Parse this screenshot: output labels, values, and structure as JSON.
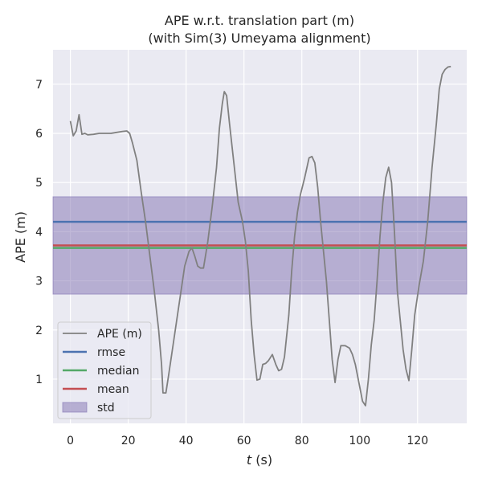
{
  "chart_data": {
    "type": "line",
    "title_line1": "APE w.r.t. translation part (m)",
    "title_line2": "(with Sim(3) Umeyama alignment)",
    "xlabel_var": "t",
    "xlabel_unit": "(s)",
    "ylabel": "APE (m)",
    "xlim": [
      -6,
      137
    ],
    "ylim": [
      0.1,
      7.7
    ],
    "xticks": [
      0,
      20,
      40,
      60,
      80,
      100,
      120
    ],
    "yticks": [
      1,
      2,
      3,
      4,
      5,
      6,
      7
    ],
    "grid": true,
    "legend_position": "lower-left",
    "colors": {
      "background": "#eaeaf2",
      "grid": "#ffffff",
      "ape": "#808080",
      "rmse": "#4c72b0",
      "median": "#55a868",
      "mean": "#c44e52",
      "std": "#8172b2"
    },
    "stats": {
      "rmse": 4.2,
      "median": 3.67,
      "mean": 3.72,
      "std_band": [
        2.73,
        4.71
      ]
    },
    "legend": [
      {
        "key": "ape",
        "label": "APE (m)",
        "kind": "line"
      },
      {
        "key": "rmse",
        "label": "rmse",
        "kind": "line"
      },
      {
        "key": "median",
        "label": "median",
        "kind": "line"
      },
      {
        "key": "mean",
        "label": "mean",
        "kind": "line"
      },
      {
        "key": "std",
        "label": "std",
        "kind": "patch"
      }
    ],
    "series": [
      {
        "name": "APE (m)",
        "points": [
          [
            0,
            6.25
          ],
          [
            1,
            5.95
          ],
          [
            2,
            6.05
          ],
          [
            3,
            6.38
          ],
          [
            4,
            5.98
          ],
          [
            5,
            6.0
          ],
          [
            6,
            5.97
          ],
          [
            8,
            5.98
          ],
          [
            10,
            6.0
          ],
          [
            12,
            6.0
          ],
          [
            14,
            6.0
          ],
          [
            16,
            6.02
          ],
          [
            18,
            6.04
          ],
          [
            19.5,
            6.05
          ],
          [
            20.5,
            6.0
          ],
          [
            21.5,
            5.8
          ],
          [
            23,
            5.45
          ],
          [
            24.5,
            4.8
          ],
          [
            26,
            4.2
          ],
          [
            27.5,
            3.5
          ],
          [
            29,
            2.8
          ],
          [
            30.5,
            2.0
          ],
          [
            31.5,
            1.3
          ],
          [
            32,
            0.72
          ],
          [
            33,
            0.72
          ],
          [
            34,
            1.1
          ],
          [
            35.5,
            1.7
          ],
          [
            37,
            2.3
          ],
          [
            38.5,
            2.9
          ],
          [
            39.5,
            3.3
          ],
          [
            41,
            3.6
          ],
          [
            42,
            3.67
          ],
          [
            43,
            3.5
          ],
          [
            44,
            3.3
          ],
          [
            45,
            3.26
          ],
          [
            46,
            3.26
          ],
          [
            47.5,
            3.8
          ],
          [
            49,
            4.5
          ],
          [
            50.5,
            5.3
          ],
          [
            51.5,
            6.1
          ],
          [
            52.5,
            6.6
          ],
          [
            53.2,
            6.85
          ],
          [
            54,
            6.77
          ],
          [
            55,
            6.2
          ],
          [
            56.5,
            5.4
          ],
          [
            58,
            4.6
          ],
          [
            59.5,
            4.2
          ],
          [
            60.5,
            3.8
          ],
          [
            61.5,
            3.2
          ],
          [
            62.5,
            2.2
          ],
          [
            63.5,
            1.5
          ],
          [
            64.5,
            0.98
          ],
          [
            65.5,
            1.0
          ],
          [
            66.5,
            1.3
          ],
          [
            67.5,
            1.32
          ],
          [
            68.5,
            1.38
          ],
          [
            69.8,
            1.5
          ],
          [
            71,
            1.3
          ],
          [
            72,
            1.17
          ],
          [
            73,
            1.2
          ],
          [
            74,
            1.45
          ],
          [
            75.5,
            2.3
          ],
          [
            76.5,
            3.2
          ],
          [
            77.5,
            3.9
          ],
          [
            78.5,
            4.4
          ],
          [
            79.5,
            4.75
          ],
          [
            81,
            5.1
          ],
          [
            82.5,
            5.5
          ],
          [
            83.5,
            5.53
          ],
          [
            84.5,
            5.4
          ],
          [
            85.5,
            4.9
          ],
          [
            86.5,
            4.2
          ],
          [
            87.5,
            3.6
          ],
          [
            88.5,
            3.0
          ],
          [
            89.5,
            2.2
          ],
          [
            90.5,
            1.4
          ],
          [
            91.5,
            0.93
          ],
          [
            92.5,
            1.4
          ],
          [
            93.5,
            1.68
          ],
          [
            95,
            1.68
          ],
          [
            96.5,
            1.63
          ],
          [
            97.5,
            1.5
          ],
          [
            98.5,
            1.3
          ],
          [
            99.5,
            1.0
          ],
          [
            100.5,
            0.7
          ],
          [
            101,
            0.55
          ],
          [
            102,
            0.46
          ],
          [
            103,
            1.0
          ],
          [
            104,
            1.7
          ],
          [
            105,
            2.2
          ],
          [
            106,
            3.0
          ],
          [
            107,
            3.9
          ],
          [
            108,
            4.6
          ],
          [
            109,
            5.1
          ],
          [
            110,
            5.31
          ],
          [
            111,
            5.0
          ],
          [
            112,
            4.0
          ],
          [
            113,
            2.8
          ],
          [
            114,
            2.2
          ],
          [
            115,
            1.6
          ],
          [
            116,
            1.2
          ],
          [
            117,
            0.97
          ],
          [
            118,
            1.6
          ],
          [
            119,
            2.3
          ],
          [
            120.5,
            2.9
          ],
          [
            122,
            3.4
          ],
          [
            123.5,
            4.2
          ],
          [
            125,
            5.3
          ],
          [
            126.5,
            6.2
          ],
          [
            127.5,
            6.9
          ],
          [
            128.5,
            7.2
          ],
          [
            129.5,
            7.3
          ],
          [
            130.5,
            7.35
          ],
          [
            131.5,
            7.36
          ]
        ]
      }
    ]
  }
}
